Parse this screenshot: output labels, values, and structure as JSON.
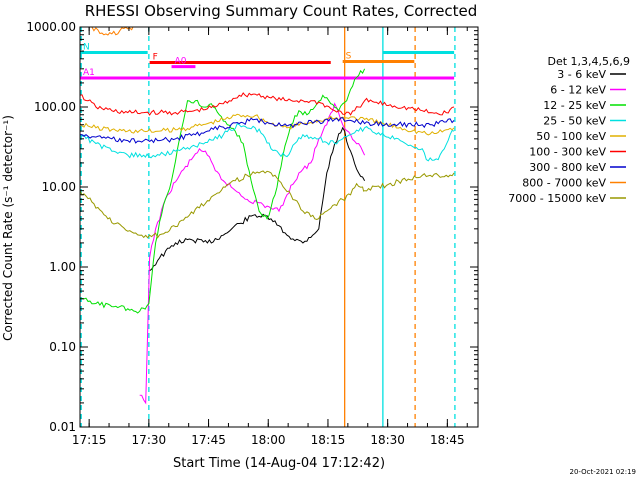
{
  "chart_data": {
    "type": "line",
    "title": "RHESSI Observing Summary Count Rates, Corrected",
    "xlabel": "Start Time (14-Aug-04 17:12:42)",
    "ylabel": "Corrected Count Rate (s⁻¹ detector⁻¹)",
    "xunit": "minutes after 17:12:42",
    "xlim": [
      0,
      100
    ],
    "ylim": [
      0.01,
      1000
    ],
    "yscale": "log",
    "xticks": [
      {
        "x": 2.3,
        "label": "17:15"
      },
      {
        "x": 17.3,
        "label": "17:30"
      },
      {
        "x": 32.3,
        "label": "17:45"
      },
      {
        "x": 47.3,
        "label": "18:00"
      },
      {
        "x": 62.3,
        "label": "18:15"
      },
      {
        "x": 77.3,
        "label": "18:30"
      },
      {
        "x": 92.3,
        "label": "18:45"
      }
    ],
    "yticks": [
      {
        "y": 1000,
        "label": "1000.00"
      },
      {
        "y": 100,
        "label": "100.00"
      },
      {
        "y": 10,
        "label": "10.00"
      },
      {
        "y": 1,
        "label": "1.00"
      },
      {
        "y": 0.1,
        "label": "0.10"
      },
      {
        "y": 0.01,
        "label": "0.01"
      }
    ],
    "legend_title": "Det 1,3,4,5,6,9",
    "legend_position": "right",
    "series": [
      {
        "name": "3 - 6 keV",
        "color": "#000000",
        "points": [
          [
            17.5,
            0.9
          ],
          [
            20,
            1.3
          ],
          [
            24,
            2
          ],
          [
            28,
            2.2
          ],
          [
            32,
            2
          ],
          [
            36,
            2.5
          ],
          [
            40,
            3.5
          ],
          [
            44,
            4.5
          ],
          [
            48,
            4
          ],
          [
            52,
            2.5
          ],
          [
            56,
            2
          ],
          [
            60,
            3
          ],
          [
            62,
            15
          ],
          [
            64,
            35
          ],
          [
            66,
            55
          ],
          [
            68,
            28
          ],
          [
            70,
            15
          ],
          [
            71.5,
            12
          ]
        ]
      },
      {
        "name": "6 - 12 keV",
        "color": "#ff00ff",
        "points": [
          [
            15,
            0.025
          ],
          [
            16.5,
            0.02
          ],
          [
            17.5,
            1.3
          ],
          [
            19,
            3
          ],
          [
            22,
            8
          ],
          [
            25,
            14
          ],
          [
            28,
            22
          ],
          [
            30,
            30
          ],
          [
            32,
            25
          ],
          [
            34,
            16
          ],
          [
            36,
            12
          ],
          [
            38,
            10
          ],
          [
            42,
            7
          ],
          [
            46,
            6
          ],
          [
            50,
            5
          ],
          [
            52,
            8
          ],
          [
            55,
            15
          ],
          [
            58,
            20
          ],
          [
            60,
            40
          ],
          [
            62,
            60
          ],
          [
            64,
            110
          ],
          [
            66,
            60
          ],
          [
            68,
            45
          ],
          [
            70,
            35
          ],
          [
            71.5,
            25
          ]
        ]
      },
      {
        "name": "12 - 25 keV",
        "color": "#00e000",
        "points": [
          [
            0,
            0.4
          ],
          [
            4,
            0.35
          ],
          [
            8,
            0.32
          ],
          [
            12,
            0.3
          ],
          [
            15,
            0.28
          ],
          [
            17.3,
            0.35
          ],
          [
            19,
            2
          ],
          [
            21,
            6
          ],
          [
            23,
            12
          ],
          [
            25,
            40
          ],
          [
            27,
            120
          ],
          [
            29,
            120
          ],
          [
            31,
            100
          ],
          [
            33,
            110
          ],
          [
            35,
            80
          ],
          [
            37,
            60
          ],
          [
            39,
            50
          ],
          [
            41,
            35
          ],
          [
            43,
            12
          ],
          [
            45,
            5
          ],
          [
            47,
            4
          ],
          [
            49,
            8
          ],
          [
            51,
            25
          ],
          [
            53,
            60
          ],
          [
            55,
            90
          ],
          [
            57,
            80
          ],
          [
            59,
            100
          ],
          [
            61,
            140
          ],
          [
            63,
            110
          ],
          [
            65,
            90
          ],
          [
            67,
            120
          ],
          [
            69,
            220
          ],
          [
            71.5,
            300
          ]
        ]
      },
      {
        "name": "25 - 50 keV",
        "color": "#00e0e0",
        "points": [
          [
            0,
            45
          ],
          [
            4,
            35
          ],
          [
            8,
            28
          ],
          [
            12,
            25
          ],
          [
            16,
            25
          ],
          [
            17.3,
            24
          ],
          [
            20,
            25
          ],
          [
            24,
            28
          ],
          [
            28,
            32
          ],
          [
            32,
            36
          ],
          [
            36,
            45
          ],
          [
            40,
            60
          ],
          [
            44,
            55
          ],
          [
            46,
            45
          ],
          [
            48,
            30
          ],
          [
            50,
            26
          ],
          [
            52,
            24
          ],
          [
            54,
            35
          ],
          [
            56,
            45
          ],
          [
            58,
            42
          ],
          [
            60,
            40
          ],
          [
            62,
            36
          ],
          [
            64,
            35
          ],
          [
            66,
            40
          ],
          [
            68,
            45
          ],
          [
            70,
            50
          ],
          [
            71.5,
            55
          ],
          [
            86,
            30
          ],
          [
            87,
            22
          ],
          [
            90,
            22
          ],
          [
            91,
            28
          ],
          [
            93,
            45
          ],
          [
            94,
            50
          ]
        ]
      },
      {
        "name": "50 - 100 keV",
        "color": "#e0b000",
        "points": [
          [
            0,
            62
          ],
          [
            4,
            55
          ],
          [
            8,
            52
          ],
          [
            12,
            50
          ],
          [
            16,
            50
          ],
          [
            20,
            50
          ],
          [
            24,
            52
          ],
          [
            28,
            56
          ],
          [
            32,
            62
          ],
          [
            36,
            70
          ],
          [
            40,
            80
          ],
          [
            44,
            78
          ],
          [
            48,
            62
          ],
          [
            52,
            55
          ],
          [
            56,
            62
          ],
          [
            60,
            68
          ],
          [
            64,
            72
          ],
          [
            68,
            75
          ],
          [
            71.5,
            70
          ],
          [
            86,
            48
          ],
          [
            88,
            46
          ],
          [
            90,
            48
          ],
          [
            92,
            52
          ],
          [
            94,
            55
          ]
        ]
      },
      {
        "name": "100 - 300 keV",
        "color": "#ff0000",
        "points": [
          [
            0,
            140
          ],
          [
            2,
            120
          ],
          [
            4,
            100
          ],
          [
            8,
            90
          ],
          [
            12,
            85
          ],
          [
            16,
            85
          ],
          [
            20,
            85
          ],
          [
            24,
            85
          ],
          [
            28,
            88
          ],
          [
            32,
            95
          ],
          [
            36,
            110
          ],
          [
            40,
            140
          ],
          [
            44,
            145
          ],
          [
            48,
            130
          ],
          [
            52,
            120
          ],
          [
            56,
            120
          ],
          [
            60,
            115
          ],
          [
            64,
            90
          ],
          [
            68,
            80
          ],
          [
            70,
            100
          ],
          [
            71.5,
            120
          ],
          [
            86,
            90
          ],
          [
            88,
            85
          ],
          [
            90,
            82
          ],
          [
            92,
            85
          ],
          [
            94,
            100
          ]
        ]
      },
      {
        "name": "300 - 800 keV",
        "color": "#0000cc",
        "points": [
          [
            0,
            45
          ],
          [
            4,
            42
          ],
          [
            8,
            40
          ],
          [
            12,
            38
          ],
          [
            16,
            38
          ],
          [
            20,
            38
          ],
          [
            24,
            40
          ],
          [
            28,
            44
          ],
          [
            32,
            50
          ],
          [
            36,
            56
          ],
          [
            40,
            62
          ],
          [
            44,
            70
          ],
          [
            48,
            62
          ],
          [
            52,
            58
          ],
          [
            56,
            62
          ],
          [
            60,
            66
          ],
          [
            64,
            70
          ],
          [
            68,
            68
          ],
          [
            71.5,
            62
          ],
          [
            86,
            60
          ],
          [
            88,
            60
          ],
          [
            90,
            62
          ],
          [
            92,
            65
          ],
          [
            94,
            68
          ]
        ]
      },
      {
        "name": "800 - 7000 keV",
        "color": "#ff8000",
        "points": [
          [
            0,
            1200
          ],
          [
            3,
            1000
          ],
          [
            6,
            800
          ],
          [
            8,
            820
          ],
          [
            10,
            900
          ],
          [
            12,
            950
          ],
          [
            14,
            1000
          ]
        ]
      },
      {
        "name": "7000 - 15000 keV",
        "color": "#999900",
        "points": [
          [
            0,
            9
          ],
          [
            3,
            6.5
          ],
          [
            6,
            4.5
          ],
          [
            9,
            3.5
          ],
          [
            12,
            2.8
          ],
          [
            15,
            2.5
          ],
          [
            18,
            2.4
          ],
          [
            21,
            2.6
          ],
          [
            24,
            3.2
          ],
          [
            27,
            4.2
          ],
          [
            30,
            5.5
          ],
          [
            33,
            7.5
          ],
          [
            36,
            10
          ],
          [
            39,
            12
          ],
          [
            42,
            14
          ],
          [
            45,
            15
          ],
          [
            48,
            15
          ],
          [
            50,
            12
          ],
          [
            53,
            8
          ],
          [
            56,
            5
          ],
          [
            59,
            4
          ],
          [
            62,
            5
          ],
          [
            64,
            6
          ],
          [
            66,
            7
          ],
          [
            68,
            8
          ],
          [
            69.5,
            11
          ],
          [
            71,
            10
          ],
          [
            71.5,
            9
          ],
          [
            86,
            14
          ],
          [
            88,
            14
          ],
          [
            90,
            14
          ],
          [
            92,
            14
          ],
          [
            94,
            15
          ]
        ]
      }
    ],
    "flag_bars": [
      {
        "label": "N",
        "color": "#00e0e0",
        "y": 480,
        "segments": [
          [
            0,
            17
          ],
          [
            76,
            94
          ]
        ]
      },
      {
        "label": "S",
        "color": "#ff8000",
        "y": 370,
        "segments": [
          [
            66,
            84
          ]
        ]
      },
      {
        "label": "F",
        "color": "#ff0000",
        "y": 360,
        "segments": [
          [
            17.5,
            63
          ]
        ]
      },
      {
        "label": "A0",
        "color": "#ff00ff",
        "y": 320,
        "segments": [
          [
            23,
            29
          ]
        ]
      },
      {
        "label": "A1",
        "color": "#ff00ff",
        "y": 230,
        "segments": [
          [
            0,
            94
          ]
        ]
      }
    ],
    "vertical_markers": [
      {
        "x": 0.3,
        "color": "#00e0e0",
        "style": "dashed"
      },
      {
        "x": 17.3,
        "color": "#00e0e0",
        "style": "dashed"
      },
      {
        "x": 66.5,
        "color": "#ff8000",
        "style": "solid"
      },
      {
        "x": 76.1,
        "color": "#00e0e0",
        "style": "solid"
      },
      {
        "x": 84.2,
        "color": "#ff8000",
        "style": "dashed"
      },
      {
        "x": 94.2,
        "color": "#00e0e0",
        "style": "dashed"
      }
    ],
    "footer": "20-Oct-2021 02:19"
  }
}
